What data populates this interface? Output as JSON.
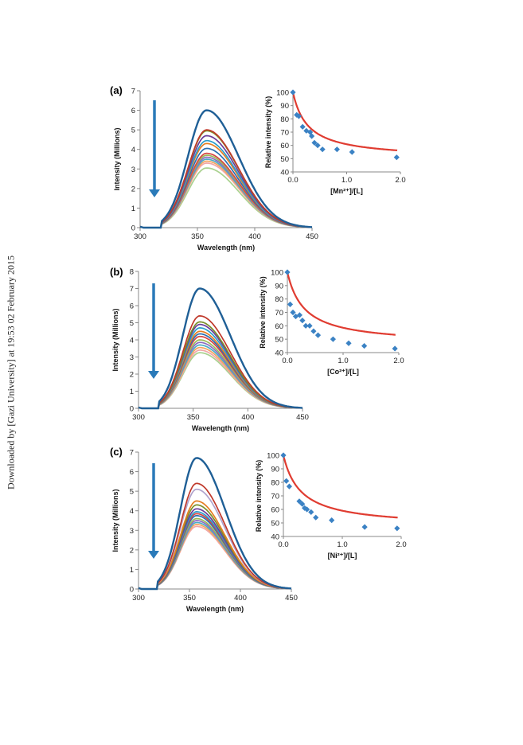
{
  "watermark": "Downloaded by [Gazi University] at 19:53 02 February 2015",
  "chart_data": [
    {
      "panel": "(a)",
      "type": "line",
      "ylabel": "Intensity (Millions)",
      "xlabel": "Wavelength (nm)",
      "xlim": [
        300,
        450
      ],
      "ylim": [
        0,
        7
      ],
      "xticks": [
        "300",
        "350",
        "400",
        "450"
      ],
      "yticks": [
        "0",
        "1",
        "2",
        "3",
        "4",
        "5",
        "6",
        "7"
      ],
      "peak_wavelength": 358,
      "series_peaks": [
        6.0,
        5.0,
        4.95,
        4.7,
        4.45,
        4.3,
        4.05,
        3.8,
        3.7,
        3.6,
        3.5,
        3.4,
        3.3,
        3.05
      ],
      "colors": [
        "#1f5f96",
        "#c0392b",
        "#7a8f2a",
        "#6a3d9a",
        "#2a9dcb",
        "#e67e22",
        "#2c6fb0",
        "#d64541",
        "#9bbb59",
        "#8e6bbf",
        "#4bacc6",
        "#f4a460",
        "#f1a7a7",
        "#a9d18e"
      ],
      "inset": {
        "type": "scatter",
        "ylabel": "Relative intensity (%)",
        "xlabel": "[Mn²⁺]/[L]",
        "xlim": [
          0,
          2
        ],
        "ylim": [
          40,
          100
        ],
        "xticks": [
          "0.0",
          "1.0",
          "2.0"
        ],
        "yticks": [
          "40",
          "50",
          "60",
          "70",
          "80",
          "90",
          "100"
        ],
        "x": [
          0,
          0.07,
          0.11,
          0.18,
          0.25,
          0.32,
          0.35,
          0.4,
          0.46,
          0.55,
          0.82,
          1.1,
          1.93
        ],
        "y": [
          100,
          83,
          82,
          74,
          71,
          70,
          67,
          62,
          60,
          57,
          57,
          55,
          51
        ],
        "fit": {
          "floor": 50,
          "amp": 50,
          "k": 3.6
        }
      }
    },
    {
      "panel": "(b)",
      "type": "line",
      "ylabel": "Intensity (Millions)",
      "xlabel": "Wavelength (nm)",
      "xlim": [
        300,
        450
      ],
      "ylim": [
        0,
        8
      ],
      "xticks": [
        "300",
        "350",
        "400",
        "450"
      ],
      "yticks": [
        "0",
        "1",
        "2",
        "3",
        "4",
        "5",
        "6",
        "7",
        "8"
      ],
      "peak_wavelength": 356,
      "series_peaks": [
        7.0,
        5.4,
        5.05,
        4.9,
        4.7,
        4.5,
        4.35,
        4.2,
        4.0,
        3.85,
        3.7,
        3.55,
        3.4,
        3.25
      ],
      "colors": [
        "#1f5f96",
        "#c0392b",
        "#7a8f2a",
        "#6a3d9a",
        "#2a9dcb",
        "#e67e22",
        "#2c6fb0",
        "#d64541",
        "#9bbb59",
        "#8e6bbf",
        "#4bacc6",
        "#f4a460",
        "#f1a7a7",
        "#a9d18e"
      ],
      "inset": {
        "type": "scatter",
        "ylabel": "Relative intensity (%)",
        "xlabel": "[Co²⁺]/[L]",
        "xlim": [
          0,
          2
        ],
        "ylim": [
          40,
          100
        ],
        "xticks": [
          "0.0",
          "1.0",
          "2.0"
        ],
        "yticks": [
          "40",
          "50",
          "60",
          "70",
          "80",
          "90",
          "100"
        ],
        "x": [
          0,
          0.05,
          0.1,
          0.15,
          0.22,
          0.27,
          0.33,
          0.4,
          0.47,
          0.55,
          0.82,
          1.1,
          1.38,
          1.93
        ],
        "y": [
          100,
          76,
          70,
          67,
          68,
          64,
          60,
          60,
          56,
          53,
          50,
          47,
          45,
          43
        ],
        "fit": {
          "floor": 46,
          "amp": 54,
          "k": 3.3
        }
      }
    },
    {
      "panel": "(c)",
      "type": "line",
      "ylabel": "Intensity (Millions)",
      "xlabel": "Wavelength (nm)",
      "xlim": [
        300,
        450
      ],
      "ylim": [
        0,
        7
      ],
      "xticks": [
        "300",
        "350",
        "400",
        "450"
      ],
      "yticks": [
        "0",
        "1",
        "2",
        "3",
        "4",
        "5",
        "6",
        "7"
      ],
      "peak_wavelength": 357,
      "series_peaks": [
        6.7,
        5.4,
        5.1,
        4.5,
        4.3,
        4.1,
        3.95,
        3.85,
        3.75,
        3.6,
        3.5,
        3.4,
        3.3,
        3.2
      ],
      "colors": [
        "#1f5f96",
        "#c0392b",
        "#b0a3cc",
        "#e67e22",
        "#7a8f2a",
        "#6a3d9a",
        "#2a9dcb",
        "#d64541",
        "#2c6fb0",
        "#9bbb59",
        "#8e6bbf",
        "#4bacc6",
        "#f4a460",
        "#f1a7a7"
      ],
      "inset": {
        "type": "scatter",
        "ylabel": "Relative intensity (%)",
        "xlabel": "[Ni²⁺]/[L]",
        "xlim": [
          0,
          2
        ],
        "ylim": [
          40,
          100
        ],
        "xticks": [
          "0.0",
          "1.0",
          "2.0"
        ],
        "yticks": [
          "40",
          "50",
          "60",
          "70",
          "80",
          "90",
          "100"
        ],
        "x": [
          0,
          0.05,
          0.1,
          0.27,
          0.32,
          0.36,
          0.4,
          0.47,
          0.55,
          0.82,
          1.38,
          1.93
        ],
        "y": [
          100,
          81,
          77,
          66,
          64,
          61,
          60,
          58,
          54,
          52,
          47,
          46
        ],
        "fit": {
          "floor": 47,
          "amp": 53,
          "k": 3.4
        }
      }
    }
  ]
}
